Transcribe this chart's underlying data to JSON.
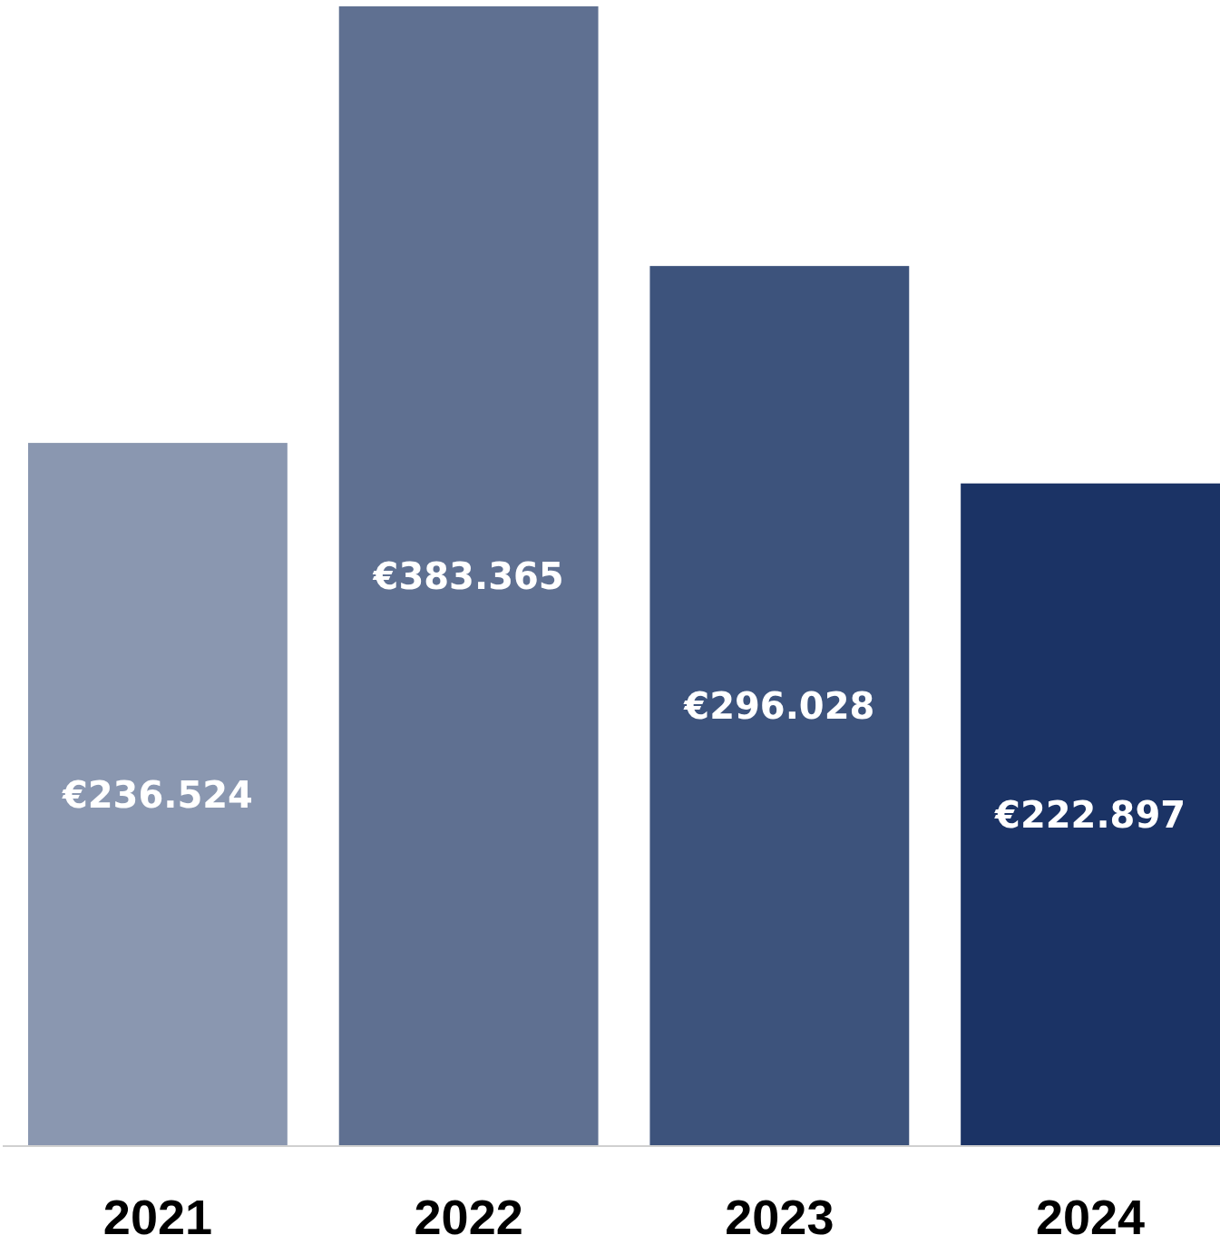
{
  "chart_data": {
    "type": "bar",
    "categories": [
      "2021",
      "2022",
      "2023",
      "2024"
    ],
    "values": [
      236524,
      383365,
      296028,
      222897
    ],
    "colors": [
      "#8a97b0",
      "#5f7091",
      "#3d537c",
      "#1b3365"
    ],
    "value_labels": [
      "€236.524",
      "€383.365",
      "€296.028",
      "€222.897"
    ]
  }
}
